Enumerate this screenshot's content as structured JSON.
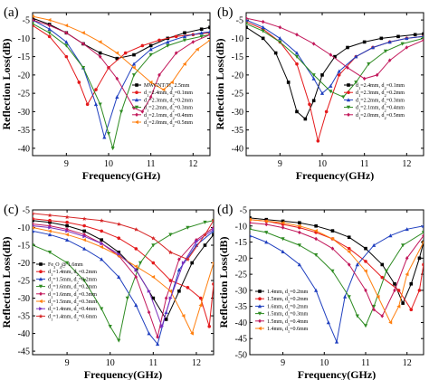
{
  "chart_data": [
    {
      "type": "line",
      "panel_label": "(a)",
      "xlabel": "Frequency(GHz)",
      "ylabel": "Reflection Loss(dB)",
      "xlim": [
        8.2,
        12.4
      ],
      "ylim": [
        -42,
        -3
      ],
      "xticks": [
        9,
        10,
        11,
        12
      ],
      "yticks": [
        -40,
        -35,
        -30,
        -25,
        -20,
        -15,
        -10,
        -5
      ],
      "legend": "bottom-right",
      "series": [
        {
          "name": "MWCNT/Ti3  2.5mm",
          "color": "#000000",
          "marker": "square",
          "x": [
            8.2,
            8.6,
            9.0,
            9.4,
            9.8,
            10.2,
            10.6,
            11.0,
            11.4,
            11.8,
            12.2,
            12.4
          ],
          "y": [
            -4.5,
            -6.2,
            -8.5,
            -11.5,
            -14.0,
            -15.5,
            -14.5,
            -12.0,
            -10.0,
            -8.5,
            -7.5,
            -7.0
          ]
        },
        {
          "name": "d1=2.4mm, d2=0.1mm",
          "color": "#e41a1c",
          "marker": "circle",
          "x": [
            8.2,
            8.6,
            9.0,
            9.3,
            9.5,
            9.7,
            10.0,
            10.4,
            10.8,
            11.2,
            11.6,
            12.0,
            12.4
          ],
          "y": [
            -6.5,
            -9.5,
            -15.0,
            -22.0,
            -28.0,
            -24.0,
            -18.0,
            -14.0,
            -12.0,
            -10.5,
            -9.5,
            -9.0,
            -8.5
          ]
        },
        {
          "name": "d1=2.3mm, d2=0.2mm",
          "color": "#1f3fbf",
          "marker": "triangle",
          "x": [
            8.2,
            8.6,
            9.0,
            9.4,
            9.7,
            9.9,
            10.2,
            10.6,
            11.0,
            11.4,
            11.8,
            12.2,
            12.4
          ],
          "y": [
            -5.0,
            -7.5,
            -11.0,
            -18.0,
            -28.0,
            -37.0,
            -26.0,
            -17.0,
            -13.0,
            -11.0,
            -9.5,
            -8.5,
            -8.2
          ]
        },
        {
          "name": "d1=2.2mm, d2=0.3mm",
          "color": "#2e8b22",
          "marker": "triangle-down",
          "x": [
            8.2,
            8.6,
            9.0,
            9.4,
            9.8,
            10.0,
            10.1,
            10.3,
            10.6,
            11.0,
            11.4,
            11.8,
            12.2,
            12.4
          ],
          "y": [
            -6.0,
            -8.5,
            -12.0,
            -18.0,
            -28.0,
            -36.0,
            -40.0,
            -30.0,
            -20.0,
            -14.5,
            -12.0,
            -10.5,
            -9.5,
            -9.0
          ]
        },
        {
          "name": "d1=2.1mm, d2=0.4mm",
          "color": "#c2185b",
          "marker": "diamond",
          "x": [
            8.2,
            8.6,
            9.0,
            9.4,
            9.8,
            10.2,
            10.6,
            10.8,
            11.0,
            11.2,
            11.6,
            12.0,
            12.4
          ],
          "y": [
            -5.0,
            -6.5,
            -8.5,
            -11.5,
            -15.0,
            -21.0,
            -29.0,
            -30.0,
            -26.0,
            -20.0,
            -14.0,
            -11.0,
            -9.0
          ]
        },
        {
          "name": "d1=2.0mm, d2=0.5mm",
          "color": "#ff7f0e",
          "marker": "triangle-left",
          "x": [
            8.2,
            8.6,
            9.0,
            9.4,
            9.8,
            10.2,
            10.6,
            11.0,
            11.3,
            11.5,
            11.8,
            12.1,
            12.4
          ],
          "y": [
            -4.0,
            -5.0,
            -6.5,
            -8.5,
            -11.0,
            -14.0,
            -18.0,
            -22.0,
            -24.0,
            -22.0,
            -17.0,
            -13.0,
            -10.5
          ]
        }
      ]
    },
    {
      "type": "line",
      "panel_label": "(b)",
      "xlabel": "Frequency(GHz)",
      "ylabel": "Reflection Loss(dB)",
      "xlim": [
        8.2,
        12.4
      ],
      "ylim": [
        -42,
        -3
      ],
      "xticks": [
        9,
        10,
        11,
        12
      ],
      "yticks": [
        -40,
        -35,
        -30,
        -25,
        -20,
        -15,
        -10,
        -5
      ],
      "legend": "bottom-right",
      "series": [
        {
          "name": "d1=2.4mm, d2=0.1mm",
          "color": "#000000",
          "marker": "square",
          "x": [
            8.2,
            8.6,
            8.9,
            9.2,
            9.4,
            9.6,
            9.8,
            10.0,
            10.3,
            10.6,
            11.0,
            11.4,
            11.8,
            12.2,
            12.4
          ],
          "y": [
            -7.0,
            -10.0,
            -14.0,
            -22.0,
            -30.0,
            -32.0,
            -27.0,
            -20.0,
            -15.0,
            -12.5,
            -11.0,
            -10.0,
            -9.5,
            -9.0,
            -8.8
          ]
        },
        {
          "name": "d1=2.3mm, d2=0.2mm",
          "color": "#e41a1c",
          "marker": "circle",
          "x": [
            8.2,
            8.6,
            9.0,
            9.4,
            9.7,
            9.9,
            10.1,
            10.4,
            10.8,
            11.2,
            11.6,
            12.0,
            12.4
          ],
          "y": [
            -5.5,
            -7.5,
            -11.0,
            -17.0,
            -28.0,
            -38.0,
            -30.0,
            -20.0,
            -15.0,
            -12.5,
            -11.0,
            -10.0,
            -9.5
          ]
        },
        {
          "name": "d1=2.2mm, d2=0.3mm",
          "color": "#1f3fbf",
          "marker": "triangle",
          "x": [
            8.2,
            8.6,
            9.0,
            9.4,
            9.8,
            10.0,
            10.2,
            10.4,
            10.8,
            11.2,
            11.6,
            12.0,
            12.4
          ],
          "y": [
            -5.0,
            -7.0,
            -10.0,
            -14.0,
            -21.0,
            -25.0,
            -23.0,
            -19.0,
            -15.0,
            -12.5,
            -11.0,
            -10.0,
            -9.5
          ]
        },
        {
          "name": "d1=2.1mm, d2=0.4mm",
          "color": "#2e8b22",
          "marker": "triangle-down",
          "x": [
            8.2,
            8.6,
            9.0,
            9.4,
            9.8,
            10.2,
            10.5,
            10.8,
            11.1,
            11.5,
            11.9,
            12.4
          ],
          "y": [
            -6.0,
            -8.0,
            -11.0,
            -15.0,
            -20.0,
            -24.5,
            -26.0,
            -22.0,
            -17.0,
            -13.5,
            -11.5,
            -10.0
          ]
        },
        {
          "name": "d1=2.0mm, d2=0.5mm",
          "color": "#c2185b",
          "marker": "diamond",
          "x": [
            8.2,
            8.6,
            9.0,
            9.4,
            9.8,
            10.2,
            10.6,
            11.0,
            11.3,
            11.6,
            12.0,
            12.4
          ],
          "y": [
            -4.5,
            -5.5,
            -7.0,
            -9.0,
            -11.5,
            -14.5,
            -18.0,
            -21.0,
            -20.0,
            -16.0,
            -12.5,
            -10.5
          ]
        }
      ]
    },
    {
      "type": "line",
      "panel_label": "(c)",
      "xlabel": "Frequency(GHz)",
      "ylabel": "Reflection Loss(dB)",
      "xlim": [
        8.2,
        12.4
      ],
      "ylim": [
        -46,
        -5
      ],
      "xticks": [
        9,
        10,
        11,
        12
      ],
      "yticks": [
        -45,
        -40,
        -35,
        -30,
        -25,
        -20,
        -15,
        -10,
        -5
      ],
      "legend": "bottom-left",
      "series": [
        {
          "name": "Fe3O4@ 1.6mm",
          "color": "#000000",
          "marker": "square",
          "x": [
            8.2,
            8.6,
            9.0,
            9.4,
            9.8,
            10.2,
            10.6,
            11.0,
            11.3,
            11.6,
            11.9,
            12.2,
            12.4
          ],
          "y": [
            -8.0,
            -8.5,
            -9.5,
            -11.0,
            -13.5,
            -17.0,
            -22.0,
            -30.0,
            -36.0,
            -28.0,
            -20.0,
            -15.0,
            -12.0
          ]
        },
        {
          "name": "d1=1.4mm, d2=0.2mm",
          "color": "#e41a1c",
          "marker": "circle",
          "x": [
            8.2,
            8.6,
            9.0,
            9.4,
            9.8,
            10.2,
            10.6,
            11.0,
            11.4,
            11.8,
            12.1,
            12.3,
            12.4
          ],
          "y": [
            -7.5,
            -8.0,
            -8.5,
            -9.5,
            -11.0,
            -13.0,
            -16.0,
            -20.0,
            -25.0,
            -27.0,
            -30.0,
            -38.0,
            -26.0
          ]
        },
        {
          "name": "d1=1.5mm, d2=0.2mm",
          "color": "#1f3fbf",
          "marker": "triangle",
          "x": [
            8.2,
            8.6,
            9.0,
            9.4,
            9.8,
            10.2,
            10.6,
            10.9,
            11.1,
            11.3,
            11.6,
            12.0,
            12.4
          ],
          "y": [
            -11.0,
            -12.0,
            -13.5,
            -16.0,
            -19.0,
            -24.0,
            -32.0,
            -40.0,
            -43.0,
            -34.0,
            -22.0,
            -15.0,
            -11.0
          ]
        },
        {
          "name": "d1=1.6mm, d2=0.2mm",
          "color": "#2e8b22",
          "marker": "triangle-down",
          "x": [
            8.2,
            8.6,
            9.0,
            9.4,
            9.8,
            10.0,
            10.2,
            10.4,
            10.7,
            11.0,
            11.4,
            11.8,
            12.2,
            12.4
          ],
          "y": [
            -15.0,
            -17.0,
            -20.0,
            -25.0,
            -33.0,
            -38.0,
            -42.0,
            -30.0,
            -20.0,
            -15.0,
            -12.0,
            -10.0,
            -8.5,
            -8.0
          ]
        },
        {
          "name": "d1=1.6mm, d2=0.3mm",
          "color": "#c2185b",
          "marker": "diamond",
          "x": [
            8.2,
            8.6,
            9.0,
            9.4,
            9.8,
            10.2,
            10.6,
            10.9,
            11.1,
            11.3,
            11.6,
            12.0,
            12.4
          ],
          "y": [
            -9.0,
            -9.5,
            -10.5,
            -12.0,
            -14.5,
            -18.0,
            -24.0,
            -34.0,
            -41.0,
            -30.0,
            -19.0,
            -13.5,
            -10.0
          ]
        },
        {
          "name": "d1=1.5mm, d2=0.3mm",
          "color": "#ff7f0e",
          "marker": "triangle-left",
          "x": [
            8.2,
            8.6,
            9.0,
            9.4,
            9.8,
            10.2,
            10.6,
            11.0,
            11.4,
            11.7,
            11.9,
            12.1,
            12.4
          ],
          "y": [
            -10.0,
            -11.0,
            -12.0,
            -13.5,
            -15.5,
            -18.0,
            -21.0,
            -24.0,
            -28.0,
            -35.0,
            -40.0,
            -32.0,
            -20.0
          ]
        },
        {
          "name": "d1=1.4mm, d2=0.4mm",
          "color": "#7b2fbe",
          "marker": "triangle-right",
          "x": [
            8.2,
            8.6,
            9.0,
            9.4,
            9.8,
            10.2,
            10.6,
            10.9,
            11.2,
            11.4,
            11.7,
            12.0,
            12.4
          ],
          "y": [
            -9.5,
            -10.0,
            -11.0,
            -12.5,
            -14.5,
            -17.5,
            -22.0,
            -28.0,
            -38.0,
            -30.0,
            -20.0,
            -14.0,
            -10.5
          ]
        },
        {
          "name": "d1=1.4mm, d2=0.6mm",
          "color": "#d62728",
          "marker": "star",
          "x": [
            8.2,
            8.6,
            9.0,
            9.4,
            9.8,
            10.2,
            10.6,
            11.0,
            11.4,
            11.8,
            12.2,
            12.4
          ],
          "y": [
            -6.0,
            -6.5,
            -7.0,
            -7.5,
            -8.0,
            -9.0,
            -10.5,
            -13.0,
            -17.0,
            -19.0,
            -12.0,
            -8.0
          ]
        }
      ]
    },
    {
      "type": "line",
      "panel_label": "(d)",
      "xlabel": "Frequency(GHz)",
      "ylabel": "Reflection Loss(dB)",
      "xlim": [
        8.2,
        12.4
      ],
      "ylim": [
        -50,
        -5
      ],
      "xticks": [
        9,
        10,
        11,
        12
      ],
      "yticks": [
        -50,
        -45,
        -40,
        -35,
        -30,
        -25,
        -20,
        -15,
        -10,
        -5
      ],
      "legend": "bottom-left",
      "series": [
        {
          "name": "1.4mm, d1=0.2mm",
          "color": "#000000",
          "marker": "square",
          "x": [
            8.2,
            8.6,
            9.0,
            9.4,
            9.8,
            10.2,
            10.6,
            11.0,
            11.4,
            11.7,
            11.9,
            12.1,
            12.3,
            12.4
          ],
          "y": [
            -7.5,
            -8.0,
            -8.5,
            -9.0,
            -10.0,
            -11.5,
            -13.5,
            -17.0,
            -22.0,
            -28.0,
            -34.0,
            -28.0,
            -20.0,
            -15.0
          ]
        },
        {
          "name": "1.5mm, d1=0.2mm",
          "color": "#e41a1c",
          "marker": "circle",
          "x": [
            8.2,
            8.6,
            9.0,
            9.4,
            9.8,
            10.2,
            10.6,
            11.0,
            11.4,
            11.8,
            12.1,
            12.3,
            12.4
          ],
          "y": [
            -8.0,
            -8.5,
            -9.5,
            -10.5,
            -12.0,
            -14.0,
            -17.0,
            -21.0,
            -26.0,
            -30.0,
            -36.0,
            -30.0,
            -22.0
          ]
        },
        {
          "name": "1.6mm, d1=0.2mm",
          "color": "#1f3fbf",
          "marker": "triangle",
          "x": [
            8.2,
            8.6,
            9.0,
            9.4,
            9.8,
            10.1,
            10.3,
            10.5,
            10.8,
            11.2,
            11.6,
            12.0,
            12.4
          ],
          "y": [
            -13.0,
            -15.0,
            -18.0,
            -22.0,
            -30.0,
            -40.0,
            -46.0,
            -32.0,
            -22.0,
            -16.0,
            -13.0,
            -11.0,
            -10.0
          ]
        },
        {
          "name": "1.5mm, d1=0.3mm",
          "color": "#2e8b22",
          "marker": "triangle-down",
          "x": [
            8.2,
            8.6,
            9.0,
            9.4,
            9.8,
            10.2,
            10.6,
            10.8,
            11.0,
            11.2,
            11.5,
            11.9,
            12.4
          ],
          "y": [
            -11.0,
            -12.0,
            -14.0,
            -16.0,
            -19.0,
            -24.0,
            -32.0,
            -38.0,
            -41.0,
            -35.0,
            -24.0,
            -16.0,
            -12.0
          ]
        },
        {
          "name": "1.5mm, d1=0.4mm",
          "color": "#c2185b",
          "marker": "diamond",
          "x": [
            8.2,
            8.6,
            9.0,
            9.4,
            9.8,
            10.2,
            10.6,
            11.0,
            11.2,
            11.4,
            11.7,
            12.0,
            12.4
          ],
          "y": [
            -9.0,
            -9.5,
            -10.5,
            -12.0,
            -14.0,
            -17.0,
            -22.0,
            -30.0,
            -36.0,
            -38.0,
            -30.0,
            -20.0,
            -13.0
          ]
        },
        {
          "name": "1.4mm, d1=0.6mm",
          "color": "#ff7f0e",
          "marker": "triangle-left",
          "x": [
            8.2,
            8.6,
            9.0,
            9.4,
            9.8,
            10.2,
            10.6,
            11.0,
            11.3,
            11.6,
            11.8,
            12.0,
            12.4
          ],
          "y": [
            -8.0,
            -8.5,
            -9.0,
            -10.0,
            -11.5,
            -14.0,
            -18.0,
            -24.0,
            -32.0,
            -40.0,
            -35.0,
            -25.0,
            -15.0
          ]
        }
      ]
    }
  ]
}
